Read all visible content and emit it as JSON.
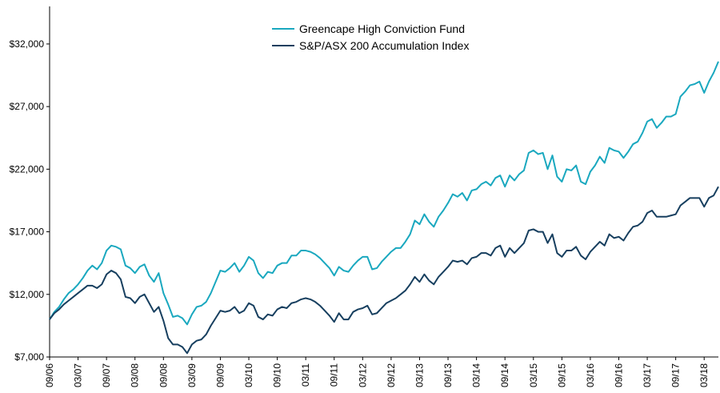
{
  "chart_data": {
    "type": "line",
    "title": "",
    "xlabel": "",
    "ylabel": "",
    "ylim": [
      7000,
      35000
    ],
    "yticks": [
      7000,
      12000,
      17000,
      22000,
      27000,
      32000
    ],
    "ytick_labels": [
      "$7,000",
      "$12,000",
      "$17,000",
      "$22,000",
      "$27,000",
      "$32,000"
    ],
    "xtick_labels": [
      "09/06",
      "03/07",
      "09/07",
      "03/08",
      "09/08",
      "03/09",
      "09/09",
      "03/10",
      "09/10",
      "03/11",
      "09/11",
      "03/12",
      "09/12",
      "03/13",
      "09/13",
      "03/14",
      "09/14",
      "03/15",
      "09/15",
      "03/16",
      "09/16",
      "03/17",
      "09/17",
      "03/18"
    ],
    "months_per_tick": 6,
    "grid": false,
    "legend_position": "top-center",
    "series": [
      {
        "name": "Greencape High Conviction Fund",
        "color": "#1aa8bf",
        "values": [
          10000,
          10600,
          11000,
          11600,
          12100,
          12400,
          12800,
          13300,
          13900,
          14300,
          14000,
          14500,
          15500,
          15900,
          15800,
          15600,
          14300,
          14100,
          13700,
          14200,
          14400,
          13500,
          13000,
          13700,
          12100,
          11200,
          10200,
          10300,
          10100,
          9600,
          10400,
          11000,
          11100,
          11400,
          12100,
          13000,
          13900,
          13800,
          14100,
          14500,
          13800,
          14300,
          15000,
          14700,
          13700,
          13300,
          13800,
          13700,
          14300,
          14500,
          14500,
          15100,
          15100,
          15500,
          15500,
          15400,
          15200,
          14900,
          14500,
          14100,
          13500,
          14200,
          13900,
          13800,
          14300,
          14700,
          15000,
          15000,
          14000,
          14100,
          14600,
          15000,
          15400,
          15700,
          15700,
          16200,
          16800,
          17900,
          17600,
          18400,
          17800,
          17400,
          18200,
          18700,
          19300,
          20000,
          19800,
          20100,
          19500,
          20300,
          20400,
          20800,
          21000,
          20700,
          21300,
          21500,
          20600,
          21500,
          21100,
          21600,
          21900,
          23300,
          23500,
          23200,
          23300,
          22000,
          23100,
          21400,
          21000,
          22000,
          21900,
          22300,
          21000,
          20800,
          21800,
          22300,
          23000,
          22500,
          23700,
          23500,
          23400,
          22900,
          23400,
          24000,
          24200,
          24900,
          25800,
          26000,
          25300,
          25700,
          26200,
          26200,
          26400,
          27800,
          28200,
          28700,
          28800,
          29000,
          28100,
          29000,
          29700,
          30600
        ]
      },
      {
        "name": "S&P/ASX 200 Accumulation Index",
        "color": "#173f5f",
        "values": [
          10000,
          10500,
          10800,
          11200,
          11500,
          11800,
          12100,
          12400,
          12700,
          12700,
          12500,
          12800,
          13600,
          13900,
          13700,
          13200,
          11800,
          11700,
          11300,
          11800,
          12000,
          11300,
          10600,
          11000,
          9900,
          8500,
          8000,
          8000,
          7800,
          7300,
          8000,
          8300,
          8400,
          8800,
          9500,
          10100,
          10700,
          10600,
          10700,
          11000,
          10500,
          10700,
          11300,
          11100,
          10200,
          10000,
          10400,
          10300,
          10800,
          11000,
          10900,
          11300,
          11400,
          11600,
          11700,
          11600,
          11400,
          11100,
          10700,
          10300,
          9800,
          10500,
          10000,
          10000,
          10600,
          10800,
          10900,
          11100,
          10400,
          10500,
          10900,
          11300,
          11500,
          11700,
          12000,
          12300,
          12800,
          13400,
          13000,
          13600,
          13100,
          12800,
          13400,
          13800,
          14200,
          14700,
          14600,
          14700,
          14400,
          14900,
          15000,
          15300,
          15300,
          15100,
          15700,
          15900,
          15000,
          15700,
          15300,
          15700,
          16100,
          17100,
          17200,
          17000,
          17000,
          16100,
          16800,
          15300,
          15000,
          15500,
          15500,
          15800,
          15100,
          14800,
          15400,
          15800,
          16200,
          15900,
          16800,
          16500,
          16600,
          16300,
          16900,
          17400,
          17500,
          17800,
          18500,
          18700,
          18200,
          18200,
          18200,
          18300,
          18400,
          19100,
          19400,
          19700,
          19700,
          19700,
          19000,
          19700,
          19900,
          20600
        ]
      }
    ]
  }
}
